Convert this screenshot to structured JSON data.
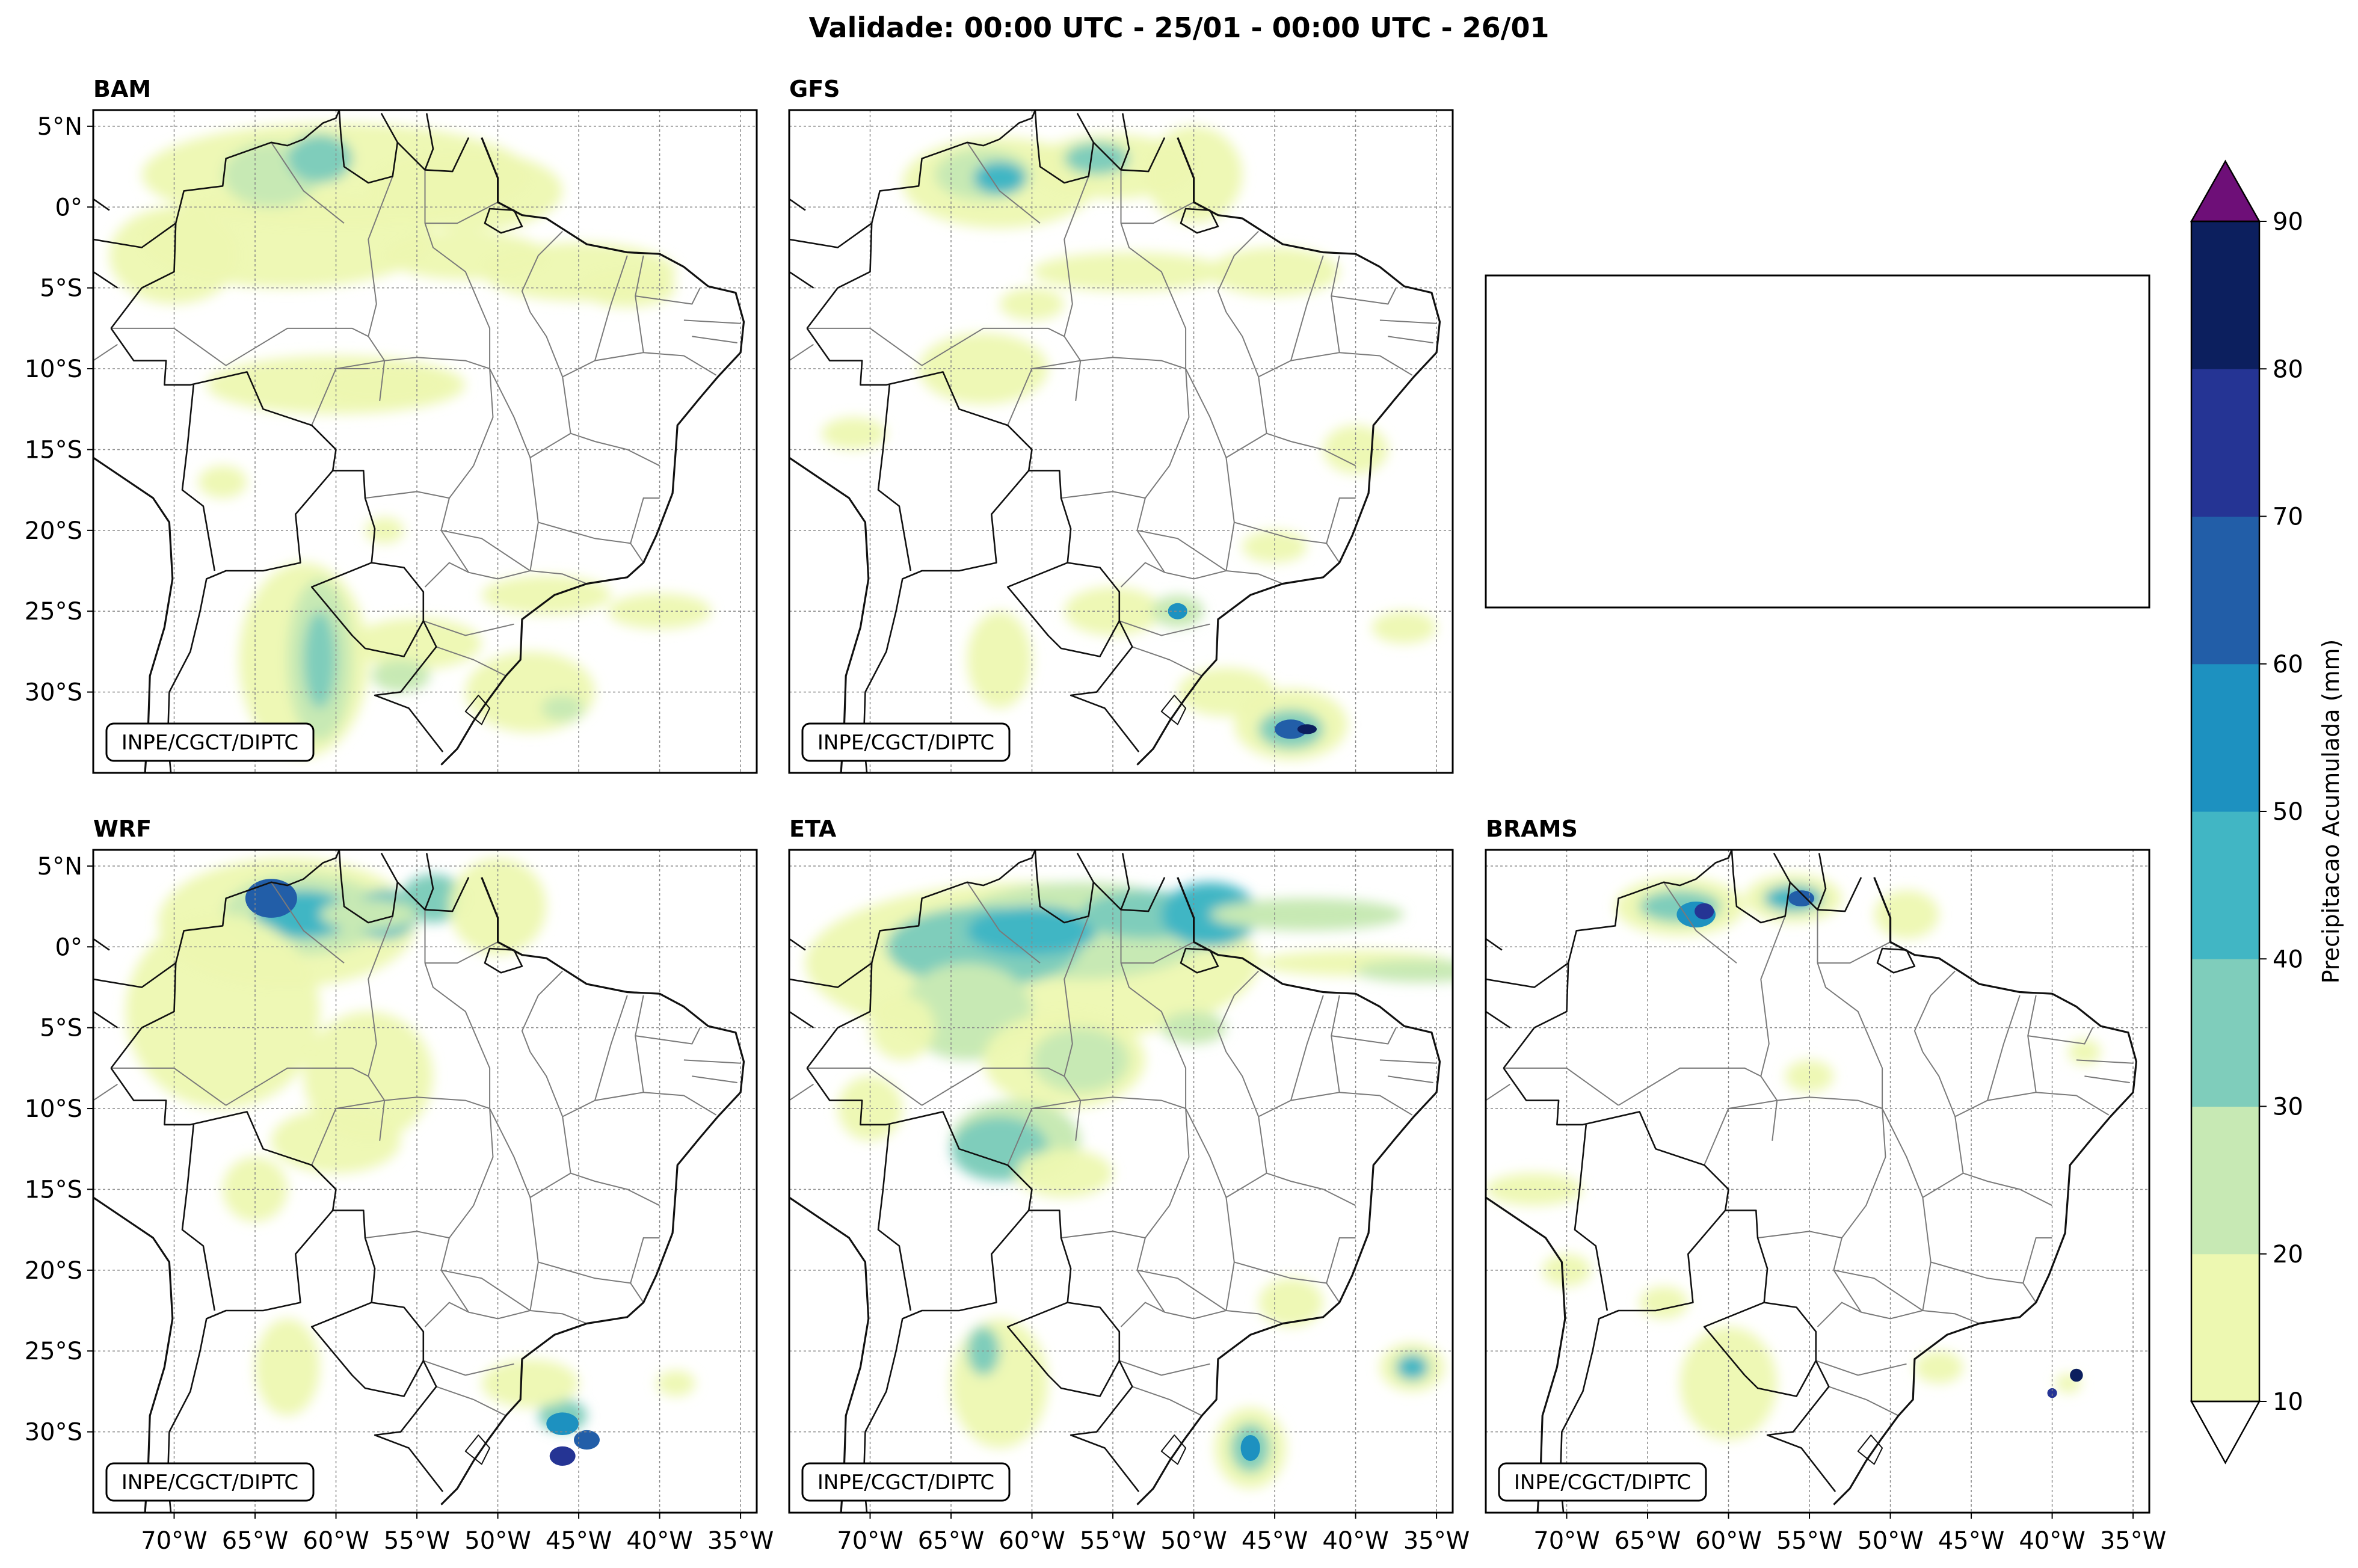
{
  "title": "Validade: 00:00 UTC - 25/01 - 00:00 UTC - 26/01",
  "credit": "INPE/CGCT/DIPTC",
  "panels": [
    {
      "name": "BAM"
    },
    {
      "name": "GFS"
    },
    {
      "name": ""
    },
    {
      "name": "WRF"
    },
    {
      "name": "ETA"
    },
    {
      "name": "BRAMS"
    }
  ],
  "lat_ticks": [
    "5°N",
    "0°",
    "5°S",
    "10°S",
    "15°S",
    "20°S",
    "25°S",
    "30°S"
  ],
  "lat_values": [
    5,
    0,
    -5,
    -10,
    -15,
    -20,
    -25,
    -30
  ],
  "lon_ticks": [
    "70°W",
    "65°W",
    "60°W",
    "55°W",
    "50°W",
    "45°W",
    "40°W",
    "35°W"
  ],
  "lon_values": [
    -70,
    -65,
    -60,
    -55,
    -50,
    -45,
    -40,
    -35
  ],
  "extent": {
    "lon": [
      -75,
      -34
    ],
    "lat": [
      -35,
      6
    ]
  },
  "colorbar": {
    "label": "Precipitacao Acumulada (mm)",
    "ticks": [
      "10",
      "20",
      "30",
      "40",
      "50",
      "60",
      "70",
      "80",
      "90"
    ],
    "levels": [
      10,
      20,
      30,
      40,
      50,
      60,
      70,
      80,
      90
    ],
    "colors": [
      "#edf8b1",
      "#c7e9b4",
      "#7fcdbb",
      "#41b6c4",
      "#1d91c0",
      "#225ea8",
      "#253494",
      "#0c1f5e"
    ],
    "over_color": "#6e0f78",
    "under_color": "#ffffff"
  }
}
